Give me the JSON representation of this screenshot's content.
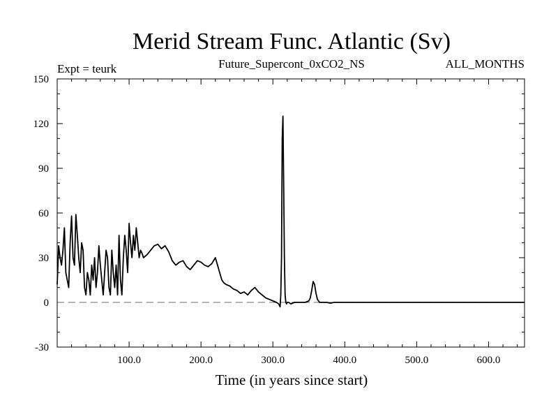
{
  "chart_data": {
    "type": "line",
    "title": "Merid Stream Func. Atlantic (Sv)",
    "left_note": "Expt = teurk",
    "center_note": "Future_Supercont_0xCO2_NS",
    "right_note": "ALL_MONTHS",
    "xlabel": "Time (in years since start)",
    "ylabel": "",
    "xlim": [
      0,
      650
    ],
    "ylim": [
      -30,
      150
    ],
    "x_ticks": [
      100,
      200,
      300,
      400,
      500,
      600
    ],
    "x_tick_labels": [
      "100.0",
      "200.0",
      "300.0",
      "400.0",
      "500.0",
      "600.0"
    ],
    "y_ticks": [
      -30,
      0,
      30,
      60,
      90,
      120,
      150
    ],
    "y_tick_labels": [
      "-30",
      "0",
      "30",
      "60",
      "90",
      "120",
      "150"
    ],
    "reference_line": {
      "y": 0,
      "style": "dashed"
    },
    "grid": false,
    "series": [
      {
        "x": [
          0,
          2,
          4,
          6,
          8,
          10,
          12,
          14,
          16,
          18,
          20,
          22,
          24,
          26,
          28,
          30,
          32,
          34,
          36,
          38,
          40,
          42,
          44,
          46,
          48,
          50,
          52,
          54,
          56,
          58,
          60,
          62,
          64,
          66,
          68,
          70,
          72,
          74,
          76,
          78,
          80,
          82,
          84,
          86,
          88,
          90,
          92,
          94,
          96,
          98,
          100,
          102,
          104,
          106,
          108,
          110,
          112,
          114,
          116,
          118,
          120,
          125,
          130,
          135,
          140,
          145,
          150,
          155,
          160,
          165,
          170,
          175,
          180,
          185,
          190,
          195,
          200,
          205,
          210,
          215,
          220,
          223,
          226,
          229,
          232,
          235,
          240,
          245,
          250,
          255,
          260,
          265,
          270,
          275,
          280,
          285,
          290,
          295,
          300,
          305,
          308,
          310,
          311,
          312,
          313,
          314,
          315,
          316,
          317,
          318,
          319,
          320,
          322,
          325,
          330,
          335,
          340,
          345,
          350,
          352,
          354,
          356,
          358,
          360,
          362,
          365,
          370,
          375,
          380,
          385,
          390,
          400,
          420,
          450,
          500,
          550,
          600,
          650
        ],
        "y": [
          12,
          38,
          30,
          25,
          35,
          50,
          20,
          15,
          10,
          40,
          58,
          30,
          25,
          59,
          45,
          30,
          20,
          40,
          35,
          10,
          5,
          20,
          15,
          5,
          25,
          15,
          30,
          10,
          20,
          38,
          25,
          15,
          5,
          20,
          35,
          30,
          10,
          5,
          35,
          20,
          10,
          25,
          5,
          45,
          15,
          5,
          30,
          45,
          35,
          20,
          53,
          40,
          30,
          45,
          35,
          50,
          40,
          30,
          35,
          33,
          30,
          32,
          35,
          38,
          39,
          36,
          38,
          34,
          28,
          25,
          27,
          28,
          24,
          22,
          25,
          28,
          27,
          25,
          24,
          26,
          30,
          25,
          20,
          15,
          13,
          12,
          11,
          9,
          8,
          6,
          7,
          5,
          8,
          10,
          7,
          5,
          3,
          2,
          1,
          0,
          -1,
          -3,
          5,
          30,
          110,
          125,
          80,
          30,
          5,
          0,
          -1,
          0,
          0,
          -1,
          0,
          0,
          0,
          0,
          1,
          3,
          8,
          14,
          12,
          6,
          2,
          0,
          0,
          0,
          -0.5,
          0,
          0,
          0,
          0,
          0,
          0,
          0,
          0,
          0
        ]
      }
    ]
  }
}
